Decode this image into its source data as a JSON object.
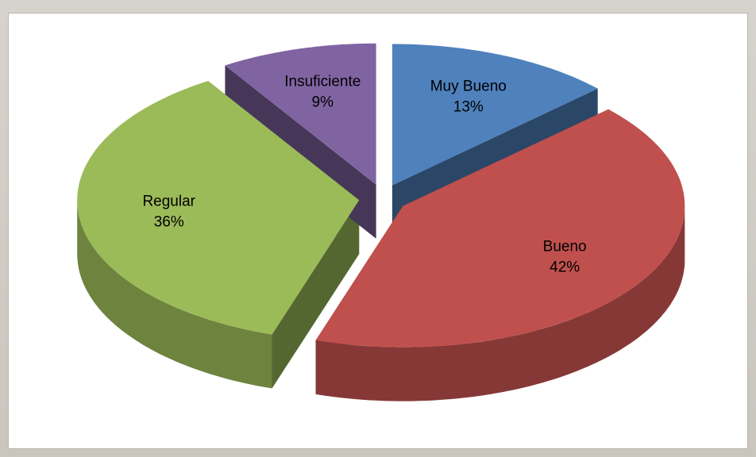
{
  "chart_data": {
    "type": "pie",
    "style": "3d-exploded",
    "categories": [
      "Muy Bueno",
      "Bueno",
      "Regular",
      "Insuficiente"
    ],
    "values": [
      13,
      42,
      36,
      9
    ],
    "value_labels": [
      "13%",
      "42%",
      "36%",
      "9%"
    ],
    "colors": [
      "#4f81bd",
      "#c0504d",
      "#9bbb59",
      "#8064a2"
    ]
  }
}
